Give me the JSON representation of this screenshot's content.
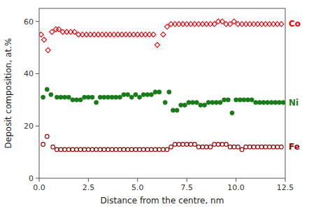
{
  "chart_data": {
    "type": "scatter",
    "xlabel": "Distance from the centre, nm",
    "ylabel": "Deposit composition, at.%",
    "xlim": [
      0,
      12.5
    ],
    "ylim": [
      0,
      65
    ],
    "xticks": [
      {
        "value": 0.0,
        "label": "0.0"
      },
      2.5,
      {
        "value": 5.0,
        "label": "5.0"
      },
      7.5,
      {
        "value": 10.0,
        "label": "10.0"
      },
      12.5
    ],
    "yticks": [
      0,
      20,
      40,
      60
    ],
    "grid": false,
    "series": [
      {
        "name": "Co",
        "color": "#e8000a",
        "marker": "diamond_open",
        "x": [
          0.1,
          0.25,
          0.45,
          0.65,
          0.85,
          1.0,
          1.2,
          1.4,
          1.6,
          1.8,
          2.0,
          2.2,
          2.4,
          2.6,
          2.8,
          3.0,
          3.2,
          3.4,
          3.6,
          3.8,
          4.0,
          4.2,
          4.4,
          4.6,
          4.8,
          5.0,
          5.2,
          5.4,
          5.6,
          5.8,
          6.0,
          6.3,
          6.5,
          6.7,
          6.9,
          7.1,
          7.3,
          7.5,
          7.7,
          7.9,
          8.1,
          8.3,
          8.5,
          8.7,
          8.9,
          9.1,
          9.3,
          9.5,
          9.7,
          9.9,
          10.1,
          10.3,
          10.5,
          10.7,
          10.9,
          11.1,
          11.3,
          11.5,
          11.7,
          11.9,
          12.1,
          12.3
        ],
        "values": [
          55,
          53,
          49,
          56,
          57,
          57,
          56,
          56,
          56,
          56,
          55,
          55,
          55,
          55,
          55,
          55,
          55,
          55,
          55,
          55,
          55,
          55,
          55,
          55,
          55,
          55,
          55,
          55,
          55,
          55,
          51,
          55,
          58,
          59,
          59,
          59,
          59,
          59,
          59,
          59,
          59,
          59,
          59,
          59,
          59,
          60,
          60,
          59,
          59,
          60,
          59,
          59,
          59,
          59,
          59,
          59,
          59,
          59,
          59,
          59,
          59,
          59
        ]
      },
      {
        "name": "Ni",
        "color": "#1a7a1a",
        "marker": "circle",
        "x": [
          0.2,
          0.4,
          0.6,
          0.9,
          1.1,
          1.3,
          1.5,
          1.7,
          1.9,
          2.1,
          2.3,
          2.5,
          2.7,
          2.9,
          3.1,
          3.3,
          3.5,
          3.7,
          3.9,
          4.1,
          4.3,
          4.5,
          4.7,
          4.9,
          5.1,
          5.3,
          5.5,
          5.7,
          5.9,
          6.1,
          6.4,
          6.6,
          6.8,
          7.0,
          7.2,
          7.4,
          7.6,
          7.8,
          8.0,
          8.2,
          8.4,
          8.6,
          8.8,
          9.0,
          9.2,
          9.4,
          9.6,
          9.8,
          10.0,
          10.2,
          10.4,
          10.6,
          10.8,
          11.0,
          11.2,
          11.4,
          11.6,
          11.8,
          12.0,
          12.2,
          12.4
        ],
        "values": [
          31,
          34,
          32,
          31,
          31,
          31,
          31,
          30,
          30,
          30,
          31,
          31,
          31,
          29,
          31,
          31,
          31,
          31,
          31,
          31,
          32,
          32,
          31,
          32,
          31,
          32,
          32,
          32,
          33,
          33,
          29,
          33,
          26,
          26,
          28,
          28,
          29,
          29,
          29,
          28,
          28,
          29,
          29,
          29,
          29,
          30,
          30,
          25,
          30,
          30,
          30,
          30,
          30,
          29,
          29,
          29,
          29,
          29,
          29,
          29,
          29
        ]
      },
      {
        "name": "Fe",
        "color": "#8b0000",
        "marker": "circle_open",
        "x": [
          0.2,
          0.4,
          0.7,
          0.9,
          1.1,
          1.3,
          1.5,
          1.7,
          1.9,
          2.1,
          2.3,
          2.5,
          2.7,
          2.9,
          3.1,
          3.3,
          3.5,
          3.7,
          3.9,
          4.1,
          4.3,
          4.5,
          4.7,
          4.9,
          5.1,
          5.3,
          5.5,
          5.7,
          5.9,
          6.1,
          6.3,
          6.5,
          6.7,
          6.9,
          7.1,
          7.3,
          7.5,
          7.7,
          7.9,
          8.1,
          8.3,
          8.5,
          8.7,
          8.9,
          9.1,
          9.3,
          9.5,
          9.7,
          9.9,
          10.1,
          10.3,
          10.5,
          10.7,
          10.9,
          11.1,
          11.3,
          11.5,
          11.7,
          11.9,
          12.1,
          12.3
        ],
        "values": [
          13,
          16,
          12,
          11,
          11,
          11,
          11,
          11,
          11,
          11,
          11,
          11,
          11,
          11,
          11,
          11,
          11,
          11,
          11,
          11,
          11,
          11,
          11,
          11,
          11,
          11,
          11,
          11,
          11,
          11,
          11,
          11,
          12,
          13,
          13,
          13,
          13,
          13,
          13,
          12,
          12,
          12,
          12,
          13,
          13,
          13,
          13,
          12,
          12,
          12,
          11,
          12,
          12,
          12,
          12,
          12,
          12,
          12,
          12,
          12,
          12
        ]
      }
    ]
  }
}
